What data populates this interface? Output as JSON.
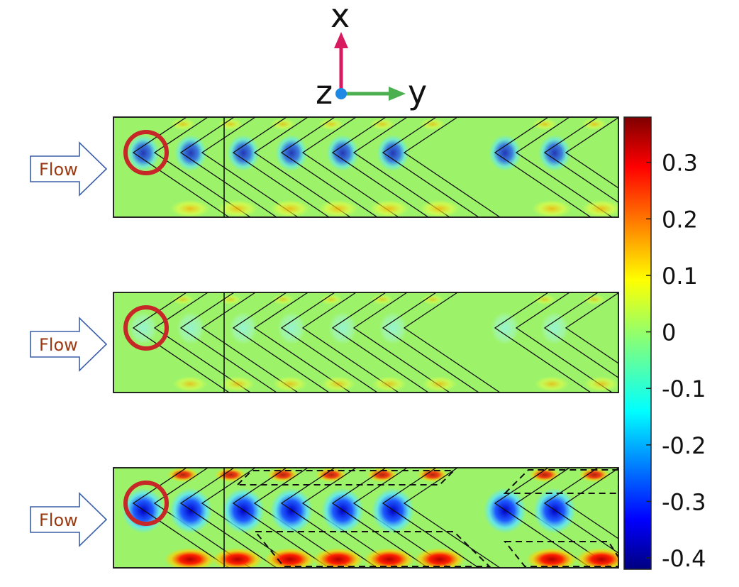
{
  "axes": {
    "x_label": "x",
    "y_label": "y",
    "z_label": "z",
    "x_color": "#d81b60",
    "y_color": "#4caf50",
    "z_color": "#1e88e5"
  },
  "panels": [
    {
      "flow_label": "Flow",
      "intensity": 0.55,
      "highlight": "circle",
      "dashed_regions": false
    },
    {
      "flow_label": "Flow",
      "intensity": 0.35,
      "highlight": "circle",
      "dashed_regions": false
    },
    {
      "flow_label": "Flow",
      "intensity": 1.0,
      "highlight": "circle",
      "dashed_regions": true
    }
  ],
  "colorbar": {
    "min": -0.42,
    "max": 0.38,
    "ticks": [
      "0.3",
      "0.2",
      "0.1",
      "0",
      "-0.1",
      "-0.2",
      "-0.3",
      "-0.4"
    ],
    "tick_values": [
      0.3,
      0.2,
      0.1,
      0,
      -0.1,
      -0.2,
      -0.3,
      -0.4
    ],
    "colormap": "jet"
  },
  "colors": {
    "background_field": "#9cf36a",
    "highlight_circle": "#c62828",
    "flow_arrow_stroke": "#3b5ea8",
    "flow_text": "#9a3a12"
  }
}
